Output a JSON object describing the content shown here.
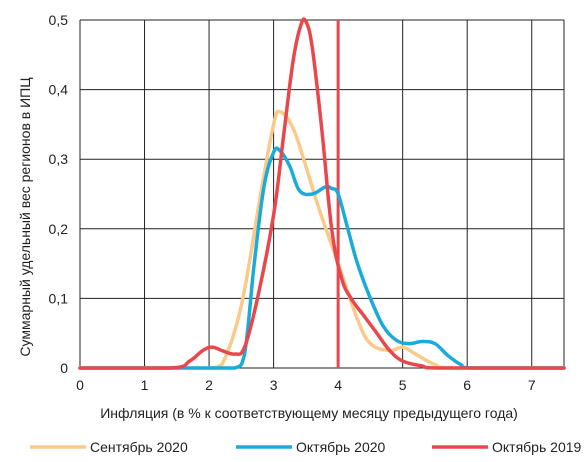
{
  "chart_data": {
    "type": "line",
    "title": "",
    "xlabel": "Инфляция (в % к соответствующему месяцу предыдущего года)",
    "ylabel": "Суммарный удельный вес регионов в ИПЦ",
    "xlim": [
      0,
      7.5
    ],
    "ylim": [
      0,
      0.5
    ],
    "xticks": [
      "0",
      "1",
      "2",
      "3",
      "4",
      "5",
      "6",
      "7"
    ],
    "yticks": [
      "0",
      "0,1",
      "0,2",
      "0,3",
      "0,4",
      "0,5"
    ],
    "grid": true,
    "legend_position": "bottom",
    "reference_line": {
      "x": 4,
      "color": "#E8474C"
    },
    "series": [
      {
        "name": "Сентябрь 2020",
        "color": "#FBC98A",
        "points": [
          [
            0,
            0
          ],
          [
            1.5,
            0
          ],
          [
            2.0,
            0
          ],
          [
            2.2,
            0.005
          ],
          [
            2.5,
            0.09
          ],
          [
            2.8,
            0.25
          ],
          [
            3.0,
            0.35
          ],
          [
            3.1,
            0.368
          ],
          [
            3.3,
            0.345
          ],
          [
            3.5,
            0.29
          ],
          [
            3.7,
            0.23
          ],
          [
            4.0,
            0.15
          ],
          [
            4.3,
            0.07
          ],
          [
            4.5,
            0.035
          ],
          [
            4.8,
            0.025
          ],
          [
            5.0,
            0.03
          ],
          [
            5.2,
            0.02
          ],
          [
            5.5,
            0.005
          ],
          [
            5.8,
            0
          ],
          [
            7.5,
            0
          ]
        ]
      },
      {
        "name": "Октябрь 2020",
        "color": "#1AABD9",
        "points": [
          [
            0,
            0
          ],
          [
            2.0,
            0
          ],
          [
            2.4,
            0
          ],
          [
            2.55,
            0.02
          ],
          [
            2.7,
            0.15
          ],
          [
            2.85,
            0.26
          ],
          [
            3.0,
            0.31
          ],
          [
            3.1,
            0.312
          ],
          [
            3.25,
            0.29
          ],
          [
            3.4,
            0.255
          ],
          [
            3.6,
            0.25
          ],
          [
            3.8,
            0.26
          ],
          [
            3.9,
            0.258
          ],
          [
            4.0,
            0.25
          ],
          [
            4.15,
            0.2
          ],
          [
            4.3,
            0.15
          ],
          [
            4.5,
            0.1
          ],
          [
            4.7,
            0.06
          ],
          [
            4.9,
            0.04
          ],
          [
            5.1,
            0.035
          ],
          [
            5.3,
            0.038
          ],
          [
            5.5,
            0.035
          ],
          [
            5.7,
            0.018
          ],
          [
            5.9,
            0.005
          ],
          [
            6.1,
            0
          ],
          [
            7.5,
            0
          ]
        ]
      },
      {
        "name": "Октябрь 2019",
        "color": "#E8474C",
        "points": [
          [
            0,
            0
          ],
          [
            1.4,
            0
          ],
          [
            1.7,
            0.01
          ],
          [
            1.9,
            0.025
          ],
          [
            2.05,
            0.03
          ],
          [
            2.2,
            0.025
          ],
          [
            2.4,
            0.02
          ],
          [
            2.55,
            0.03
          ],
          [
            2.75,
            0.1
          ],
          [
            3.0,
            0.22
          ],
          [
            3.15,
            0.33
          ],
          [
            3.3,
            0.44
          ],
          [
            3.42,
            0.492
          ],
          [
            3.5,
            0.498
          ],
          [
            3.6,
            0.46
          ],
          [
            3.75,
            0.34
          ],
          [
            3.9,
            0.2
          ],
          [
            4.05,
            0.13
          ],
          [
            4.2,
            0.1
          ],
          [
            4.4,
            0.075
          ],
          [
            4.6,
            0.05
          ],
          [
            4.8,
            0.025
          ],
          [
            5.0,
            0.01
          ],
          [
            5.3,
            0.003
          ],
          [
            5.6,
            0
          ],
          [
            7.5,
            0
          ]
        ]
      }
    ]
  }
}
